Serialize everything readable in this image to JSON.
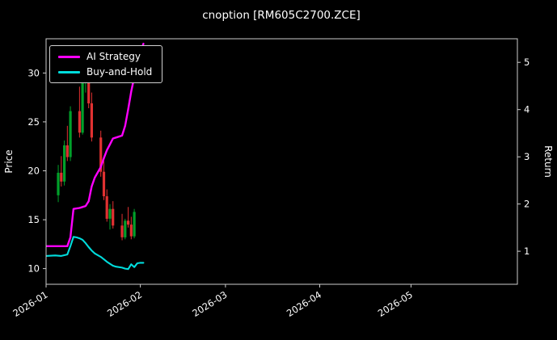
{
  "chart_data": {
    "type": "candlestick",
    "title": "cnoption [RM605C2700.ZCE]",
    "x_axis": {
      "start_date": "2026-01-01",
      "tick_labels": [
        "2026-01",
        "2026-02",
        "2026-03",
        "2026-04",
        "2026-05"
      ],
      "tick_days": [
        0,
        31,
        59,
        90,
        120
      ],
      "total_days": 155
    },
    "y_left": {
      "label": "Price",
      "ticks": [
        10,
        15,
        20,
        25,
        30
      ],
      "range": [
        8.4,
        33.5
      ]
    },
    "y_right": {
      "label": "Return",
      "ticks": [
        1,
        2,
        3,
        4,
        5
      ],
      "range": [
        0.3,
        5.5
      ]
    },
    "colors": {
      "background": "#000000",
      "text": "#ffffff",
      "spine": "#cccccc",
      "ai_strategy": "#ff00ff",
      "buy_and_hold": "#00dcdc",
      "candle_up": "#00a02a",
      "candle_down": "#e03131"
    },
    "legend_position": "upper-left",
    "series": [
      {
        "name": "AI Strategy",
        "color": "#ff00ff",
        "axis": "left",
        "points": [
          [
            0,
            12.3
          ],
          [
            2,
            12.3
          ],
          [
            5,
            12.3
          ],
          [
            7,
            12.3
          ],
          [
            8,
            13.2
          ],
          [
            9,
            16.1
          ],
          [
            11,
            16.2
          ],
          [
            12,
            16.3
          ],
          [
            13,
            16.4
          ],
          [
            14,
            16.9
          ],
          [
            15,
            18.4
          ],
          [
            16,
            19.3
          ],
          [
            18,
            20.4
          ],
          [
            19,
            21.3
          ],
          [
            20,
            22.1
          ],
          [
            21,
            22.7
          ],
          [
            22,
            23.3
          ],
          [
            23,
            23.4
          ],
          [
            25,
            23.6
          ],
          [
            26,
            24.6
          ],
          [
            27,
            26.3
          ],
          [
            28,
            28.1
          ],
          [
            29,
            29.6
          ],
          [
            30,
            30.9
          ],
          [
            31,
            32.0
          ],
          [
            32,
            33.0
          ]
        ]
      },
      {
        "name": "Buy-and-Hold",
        "color": "#00dcdc",
        "axis": "left",
        "points": [
          [
            0,
            11.3
          ],
          [
            3,
            11.35
          ],
          [
            5,
            11.3
          ],
          [
            7,
            11.45
          ],
          [
            8,
            12.3
          ],
          [
            9,
            13.25
          ],
          [
            10,
            13.2
          ],
          [
            11,
            13.1
          ],
          [
            12,
            12.95
          ],
          [
            13,
            12.6
          ],
          [
            14,
            12.2
          ],
          [
            15,
            11.85
          ],
          [
            16,
            11.55
          ],
          [
            18,
            11.2
          ],
          [
            19,
            10.95
          ],
          [
            20,
            10.7
          ],
          [
            21,
            10.5
          ],
          [
            22,
            10.3
          ],
          [
            23,
            10.2
          ],
          [
            25,
            10.1
          ],
          [
            26,
            10.0
          ],
          [
            27,
            9.95
          ],
          [
            28,
            10.45
          ],
          [
            29,
            10.15
          ],
          [
            30,
            10.55
          ],
          [
            31,
            10.6
          ],
          [
            32,
            10.6
          ]
        ]
      }
    ],
    "candles": {
      "up_color": "#00a02a",
      "down_color": "#e03131",
      "columns": [
        "day",
        "open",
        "high",
        "low",
        "close"
      ],
      "data": [
        [
          4,
          17.5,
          20.6,
          16.8,
          19.8
        ],
        [
          5,
          19.8,
          21.5,
          18.4,
          18.9
        ],
        [
          6,
          18.9,
          23.1,
          18.5,
          22.6
        ],
        [
          7,
          22.6,
          24.6,
          21.0,
          21.4
        ],
        [
          8,
          21.4,
          26.6,
          21.0,
          26.1
        ],
        [
          11,
          26.1,
          28.6,
          23.4,
          23.9
        ],
        [
          12,
          23.9,
          30.6,
          23.7,
          30.1
        ],
        [
          13,
          30.1,
          31.6,
          28.0,
          31.1
        ],
        [
          14,
          31.1,
          31.4,
          26.4,
          26.9
        ],
        [
          15,
          26.9,
          28.0,
          23.0,
          23.4
        ],
        [
          18,
          23.4,
          24.1,
          19.4,
          19.9
        ],
        [
          19,
          19.9,
          21.0,
          17.0,
          17.4
        ],
        [
          20,
          17.4,
          18.1,
          14.8,
          15.1
        ],
        [
          21,
          15.1,
          16.6,
          14.0,
          16.1
        ],
        [
          22,
          16.1,
          16.9,
          14.1,
          14.4
        ],
        [
          25,
          14.4,
          15.6,
          12.9,
          13.2
        ],
        [
          26,
          13.2,
          15.1,
          13.0,
          14.9
        ],
        [
          27,
          14.9,
          16.3,
          14.2,
          14.5
        ],
        [
          28,
          14.5,
          15.3,
          13.0,
          13.3
        ],
        [
          29,
          13.3,
          16.1,
          13.1,
          15.8
        ]
      ]
    }
  }
}
